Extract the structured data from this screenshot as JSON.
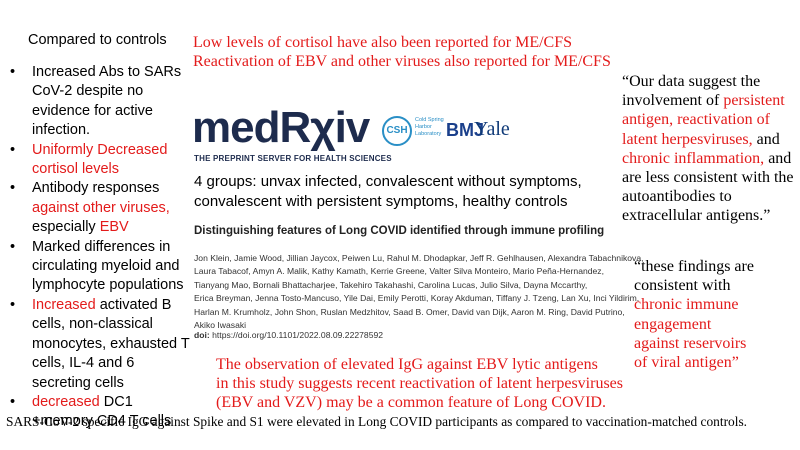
{
  "left": {
    "heading": "Compared to controls",
    "bullets": [
      {
        "segments": [
          {
            "text": "Increased Abs to SARs CoV-2 despite no evidence for active infection.",
            "color": "#000000"
          }
        ]
      },
      {
        "segments": [
          {
            "text": "Uniformly Decreased cortisol levels",
            "color": "#e31b1b"
          }
        ]
      },
      {
        "segments": [
          {
            "text": "Antibody responses ",
            "color": "#000000"
          },
          {
            "text": "against other viruses,",
            "color": "#e31b1b"
          },
          {
            "text": " especially ",
            "color": "#000000"
          },
          {
            "text": "EBV",
            "color": "#e31b1b"
          }
        ]
      },
      {
        "segments": [
          {
            "text": "Marked differences in circulating myeloid and lymphocyte populations",
            "color": "#000000"
          }
        ]
      },
      {
        "segments": [
          {
            "text": "Increased",
            "color": "#e31b1b"
          },
          {
            "text": " activated B cells, non-classical monocytes, exhausted T cells, IL-4 and 6 secreting cells",
            "color": "#000000"
          }
        ]
      },
      {
        "segments": [
          {
            "text": "decreased",
            "color": "#e31b1b"
          },
          {
            "text": " DC1 +memory CD4 T cells",
            "color": "#000000"
          }
        ]
      }
    ]
  },
  "top_notes": [
    "Low levels of cortisol have also been reported for  ME/CFS",
    "Reactivation of EBV and other viruses also reported for ME/CFS"
  ],
  "note_color": "#e31b1b",
  "logos": {
    "medrxiv": "medRχiv",
    "medrxiv_tagline": "THE PREPRINT SERVER FOR HEALTH SCIENCES",
    "csh": "CSH",
    "csh_name": "Cold Spring Harbor Laboratory",
    "bmj": "BMJ",
    "yale": "Yale"
  },
  "groups": "4 groups: unvax infected, convalescent without symptoms, convalescent with persistent symptoms, healthy controls",
  "paper": {
    "title": "Distinguishing features of Long COVID identified through immune profiling",
    "authors": [
      "Jon Klein, Jamie Wood, Jillian Jaycox, Peiwen Lu, Rahul M. Dhodapkar, Jeff R. Gehlhausen, Alexandra Tabachnikova,",
      "Laura Tabacof, Amyn A. Malik, Kathy Kamath, Kerrie Greene, Valter Silva Monteiro, Mario Peña-Hernandez,",
      "Tianyang Mao, Bornali Bhattacharjee, Takehiro Takahashi, Carolina Lucas, Julio Silva, Dayna Mccarthy,",
      "Erica Breyman, Jenna Tosto-Mancuso, Yile Dai, Emily Perotti, Koray Akduman, Tiffany J. Tzeng, Lan Xu, Inci Yildirim,",
      "Harlan M. Krumholz, John Shon, Ruslan Medzhitov, Saad B. Omer, David van Dijk, Aaron M. Ring, David Putrino,",
      "Akiko Iwasaki"
    ],
    "doi_label": "doi:",
    "doi": "https://doi.org/10.1101/2022.08.09.22278592"
  },
  "observation": [
    "The observation of elevated IgG against EBV lytic antigens",
    "in this study suggests recent reactivation of latent herpesviruses",
    "(EBV and VZV) may be a common feature of Long COVID."
  ],
  "footer": "SARS-CoV-2 specific IgG against Spike and S1 were elevated in Long COVID participants as compared to vaccination-matched controls.",
  "quotes": [
    {
      "segments": [
        {
          "text": "“Our data suggest the involvement of ",
          "color": "#000000"
        },
        {
          "text": "persistent antigen, reactivation of latent herpesviruses,",
          "color": "#e31b1b"
        },
        {
          "text": "  and ",
          "color": "#000000"
        },
        {
          "text": "chronic inflammation,",
          "color": "#e31b1b"
        },
        {
          "text": " and are less consistent with the autoantibodies to extracellular antigens.”",
          "color": "#000000"
        }
      ]
    },
    {
      "segments": [
        {
          "text": "“these findings are consistent with ",
          "color": "#000000"
        },
        {
          "text": "chronic immune engagement against reservoirs of viral antigen”",
          "color": "#e31b1b"
        }
      ]
    }
  ]
}
